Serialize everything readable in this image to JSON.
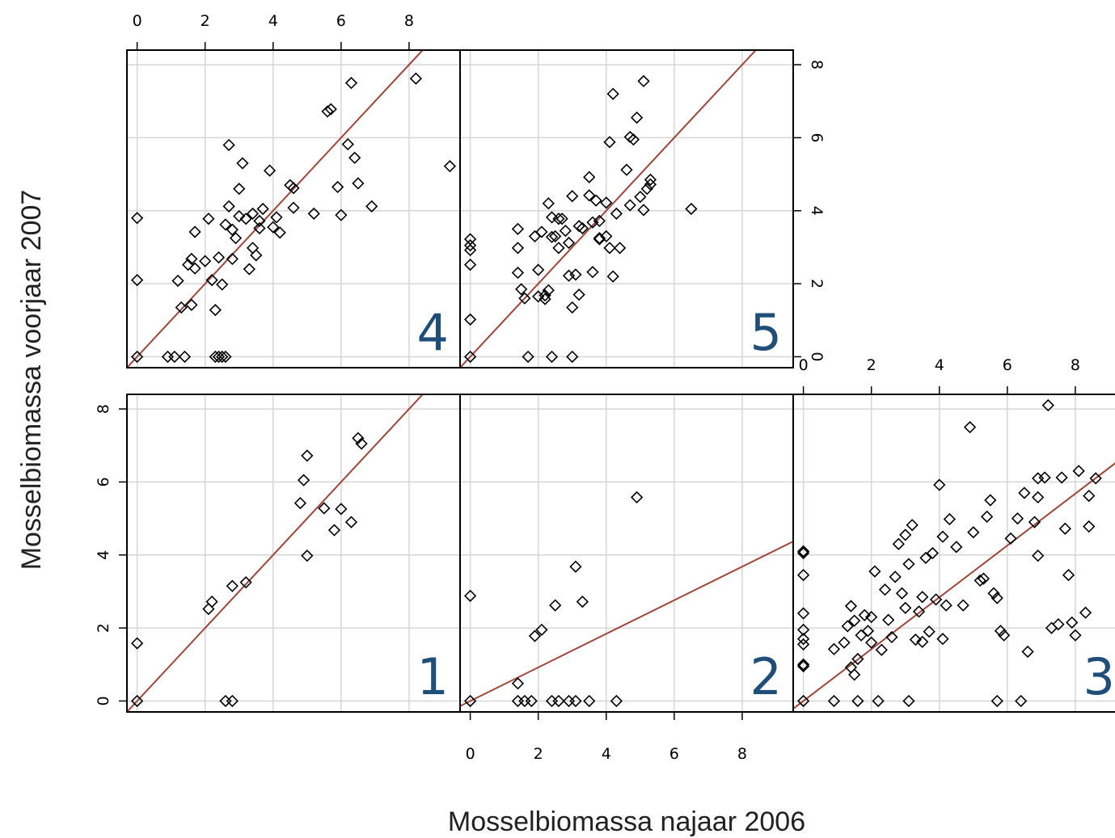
{
  "chart_data": {
    "type": "scatter",
    "xlabel": "Mosselbiomassa najaar 2006",
    "ylabel": "Mosselbiomassa voorjaar 2007",
    "xlim": [
      -0.3,
      9.5
    ],
    "ylim": [
      -0.3,
      8.4
    ],
    "ticks": [
      0,
      2,
      4,
      6,
      8
    ],
    "grid": true,
    "panels": [
      {
        "id": "1",
        "label": "1",
        "fit_slope": 1,
        "points": [
          [
            0,
            1.58
          ],
          [
            0,
            0
          ],
          [
            2.1,
            2.52
          ],
          [
            2.2,
            2.72
          ],
          [
            2.6,
            0
          ],
          [
            2.8,
            0
          ],
          [
            2.8,
            3.15
          ],
          [
            3.2,
            3.25
          ],
          [
            4.8,
            5.42
          ],
          [
            4.9,
            6.05
          ],
          [
            5,
            6.72
          ],
          [
            5,
            3.98
          ],
          [
            5.5,
            5.28
          ],
          [
            5.8,
            4.68
          ],
          [
            6,
            5.26
          ],
          [
            6.3,
            4.9
          ],
          [
            6.5,
            7.2
          ],
          [
            6.6,
            7.05
          ]
        ]
      },
      {
        "id": "2",
        "label": "2",
        "fit_slope": 0.46,
        "points": [
          [
            0,
            2.88
          ],
          [
            0,
            0
          ],
          [
            1.4,
            0.48
          ],
          [
            1.4,
            0
          ],
          [
            1.6,
            0
          ],
          [
            1.8,
            0
          ],
          [
            1.9,
            1.78
          ],
          [
            2.1,
            1.95
          ],
          [
            2.4,
            0
          ],
          [
            2.5,
            2.62
          ],
          [
            2.6,
            0
          ],
          [
            2.9,
            0
          ],
          [
            3.1,
            0
          ],
          [
            3.1,
            3.68
          ],
          [
            3.3,
            2.72
          ],
          [
            3.5,
            0
          ],
          [
            4.3,
            0
          ],
          [
            4.9,
            5.58
          ]
        ]
      },
      {
        "id": "3",
        "label": "3",
        "fit_slope": 0.71,
        "points": [
          [
            0,
            4.1
          ],
          [
            0,
            4.05
          ],
          [
            0,
            3.45
          ],
          [
            0,
            2.4
          ],
          [
            0,
            1.95
          ],
          [
            0,
            1.7
          ],
          [
            0,
            1.55
          ],
          [
            0,
            1.0
          ],
          [
            0,
            0.95
          ],
          [
            0,
            0
          ],
          [
            0.9,
            1.42
          ],
          [
            0.9,
            0
          ],
          [
            1.2,
            1.6
          ],
          [
            1.3,
            2.05
          ],
          [
            1.4,
            2.6
          ],
          [
            1.4,
            0.92
          ],
          [
            1.5,
            2.2
          ],
          [
            1.5,
            0.72
          ],
          [
            1.6,
            1.15
          ],
          [
            1.6,
            0
          ],
          [
            1.7,
            1.8
          ],
          [
            1.8,
            2.35
          ],
          [
            1.9,
            1.92
          ],
          [
            2.0,
            2.3
          ],
          [
            2.0,
            1.6
          ],
          [
            2.1,
            3.55
          ],
          [
            2.2,
            0
          ],
          [
            2.3,
            1.4
          ],
          [
            2.4,
            3.05
          ],
          [
            2.5,
            2.22
          ],
          [
            2.6,
            1.75
          ],
          [
            2.7,
            3.4
          ],
          [
            2.8,
            4.3
          ],
          [
            2.9,
            2.95
          ],
          [
            3.0,
            4.55
          ],
          [
            3.0,
            2.55
          ],
          [
            3.1,
            3.75
          ],
          [
            3.1,
            0
          ],
          [
            3.2,
            4.82
          ],
          [
            3.3,
            1.68
          ],
          [
            3.4,
            2.45
          ],
          [
            3.5,
            2.85
          ],
          [
            3.5,
            1.62
          ],
          [
            3.6,
            3.92
          ],
          [
            3.7,
            1.9
          ],
          [
            3.8,
            4.05
          ],
          [
            3.9,
            2.78
          ],
          [
            4.0,
            5.92
          ],
          [
            4.1,
            4.5
          ],
          [
            4.1,
            1.7
          ],
          [
            4.2,
            2.62
          ],
          [
            4.3,
            4.98
          ],
          [
            4.5,
            4.22
          ],
          [
            4.7,
            2.62
          ],
          [
            4.9,
            7.5
          ],
          [
            5.0,
            4.62
          ],
          [
            5.2,
            3.3
          ],
          [
            5.3,
            3.35
          ],
          [
            5.4,
            5.05
          ],
          [
            5.5,
            5.5
          ],
          [
            5.6,
            2.95
          ],
          [
            5.7,
            2.82
          ],
          [
            5.8,
            1.92
          ],
          [
            5.9,
            1.8
          ],
          [
            6.1,
            4.45
          ],
          [
            6.3,
            5.0
          ],
          [
            6.4,
            0
          ],
          [
            6.5,
            5.7
          ],
          [
            6.6,
            1.35
          ],
          [
            6.8,
            4.9
          ],
          [
            6.9,
            3.98
          ],
          [
            7.1,
            6.12
          ],
          [
            7.3,
            2.0
          ],
          [
            7.5,
            2.1
          ],
          [
            7.7,
            4.72
          ],
          [
            7.8,
            3.45
          ],
          [
            7.9,
            2.15
          ],
          [
            8.0,
            1.8
          ],
          [
            8.1,
            6.3
          ],
          [
            8.3,
            2.42
          ],
          [
            8.4,
            5.62
          ],
          [
            8.4,
            4.78
          ],
          [
            8.6,
            6.1
          ],
          [
            5.7,
            0
          ],
          [
            6.9,
            6.1
          ],
          [
            7.2,
            8.1
          ],
          [
            7.6,
            6.12
          ],
          [
            6.9,
            5.58
          ]
        ]
      },
      {
        "id": "4",
        "label": "4",
        "fit_slope": 1,
        "points": [
          [
            0,
            3.8
          ],
          [
            0,
            2.1
          ],
          [
            0,
            0
          ],
          [
            0.9,
            0
          ],
          [
            1.1,
            0
          ],
          [
            1.2,
            2.08
          ],
          [
            1.3,
            1.35
          ],
          [
            1.4,
            0
          ],
          [
            1.5,
            2.52
          ],
          [
            1.6,
            1.42
          ],
          [
            1.6,
            2.68
          ],
          [
            1.7,
            3.42
          ],
          [
            1.7,
            2.42
          ],
          [
            2.0,
            2.62
          ],
          [
            2.1,
            3.78
          ],
          [
            2.2,
            2.1
          ],
          [
            2.3,
            1.28
          ],
          [
            2.3,
            0
          ],
          [
            2.4,
            2.72
          ],
          [
            2.4,
            0
          ],
          [
            2.5,
            0
          ],
          [
            2.5,
            1.98
          ],
          [
            2.6,
            3.62
          ],
          [
            2.6,
            0
          ],
          [
            2.7,
            4.12
          ],
          [
            2.8,
            3.48
          ],
          [
            2.8,
            2.68
          ],
          [
            2.9,
            3.25
          ],
          [
            3.0,
            4.6
          ],
          [
            3.0,
            3.85
          ],
          [
            3.1,
            5.3
          ],
          [
            3.2,
            3.78
          ],
          [
            3.3,
            2.4
          ],
          [
            3.4,
            3.92
          ],
          [
            3.4,
            2.98
          ],
          [
            3.5,
            2.78
          ],
          [
            3.6,
            3.72
          ],
          [
            3.6,
            3.52
          ],
          [
            3.7,
            4.05
          ],
          [
            3.9,
            5.1
          ],
          [
            4.0,
            3.55
          ],
          [
            4.1,
            3.82
          ],
          [
            4.2,
            3.4
          ],
          [
            4.5,
            4.7
          ],
          [
            4.6,
            4.62
          ],
          [
            4.6,
            4.08
          ],
          [
            5.2,
            3.92
          ],
          [
            5.6,
            6.72
          ],
          [
            5.7,
            6.78
          ],
          [
            5.9,
            4.65
          ],
          [
            6.0,
            3.88
          ],
          [
            6.2,
            5.82
          ],
          [
            6.3,
            7.5
          ],
          [
            6.4,
            5.45
          ],
          [
            6.5,
            4.75
          ],
          [
            6.9,
            4.12
          ],
          [
            8.2,
            7.62
          ],
          [
            9.2,
            5.22
          ],
          [
            2.7,
            5.8
          ]
        ]
      },
      {
        "id": "5",
        "label": "5",
        "fit_slope": 1,
        "points": [
          [
            0,
            3.22
          ],
          [
            0,
            3.05
          ],
          [
            0,
            2.92
          ],
          [
            0,
            2.52
          ],
          [
            0,
            1.02
          ],
          [
            0,
            0
          ],
          [
            1.4,
            3.5
          ],
          [
            1.4,
            2.98
          ],
          [
            1.4,
            2.3
          ],
          [
            1.5,
            1.85
          ],
          [
            1.6,
            1.6
          ],
          [
            1.7,
            0
          ],
          [
            1.9,
            3.3
          ],
          [
            2.0,
            2.38
          ],
          [
            2.0,
            1.65
          ],
          [
            2.1,
            3.42
          ],
          [
            2.2,
            1.58
          ],
          [
            2.2,
            1.68
          ],
          [
            2.3,
            1.82
          ],
          [
            2.3,
            4.2
          ],
          [
            2.4,
            3.82
          ],
          [
            2.4,
            3.28
          ],
          [
            2.4,
            0
          ],
          [
            2.5,
            3.3
          ],
          [
            2.6,
            3.78
          ],
          [
            2.6,
            2.98
          ],
          [
            2.7,
            3.78
          ],
          [
            2.8,
            3.45
          ],
          [
            2.9,
            3.12
          ],
          [
            2.9,
            2.22
          ],
          [
            3.0,
            4.4
          ],
          [
            3.0,
            1.35
          ],
          [
            3.0,
            0
          ],
          [
            3.1,
            2.25
          ],
          [
            3.2,
            3.58
          ],
          [
            3.2,
            1.7
          ],
          [
            3.3,
            3.52
          ],
          [
            3.5,
            4.92
          ],
          [
            3.5,
            4.42
          ],
          [
            3.6,
            3.68
          ],
          [
            3.6,
            2.32
          ],
          [
            3.7,
            4.28
          ],
          [
            3.8,
            3.25
          ],
          [
            3.8,
            3.22
          ],
          [
            4.0,
            4.22
          ],
          [
            4.0,
            3.3
          ],
          [
            4.1,
            5.88
          ],
          [
            4.1,
            2.98
          ],
          [
            4.2,
            7.2
          ],
          [
            4.2,
            2.2
          ],
          [
            4.3,
            3.92
          ],
          [
            4.4,
            2.98
          ],
          [
            4.6,
            5.12
          ],
          [
            4.7,
            6.02
          ],
          [
            4.7,
            4.15
          ],
          [
            4.8,
            5.95
          ],
          [
            4.9,
            6.55
          ],
          [
            5.0,
            4.38
          ],
          [
            5.1,
            7.55
          ],
          [
            5.1,
            4.02
          ],
          [
            5.2,
            4.6
          ],
          [
            5.3,
            4.72
          ],
          [
            5.3,
            4.85
          ],
          [
            6.5,
            4.05
          ],
          [
            3.8,
            3.72
          ]
        ]
      }
    ],
    "panel_layout": [
      [
        "4",
        "5",
        ""
      ],
      [
        "1",
        "2",
        "3"
      ]
    ],
    "tick_placement": {
      "1": [
        "left"
      ],
      "2": [
        "bottom"
      ],
      "3": [
        "top"
      ],
      "4": [
        "top"
      ],
      "5": [
        "right"
      ]
    }
  }
}
